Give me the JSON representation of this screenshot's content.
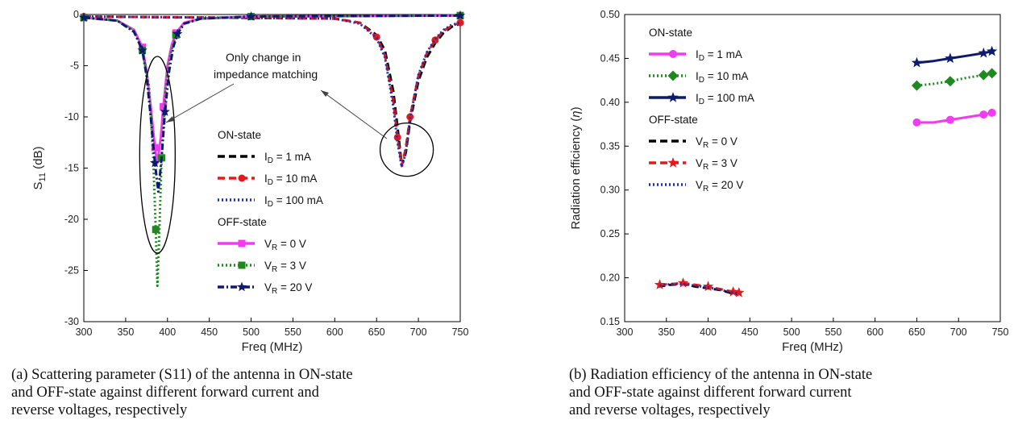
{
  "chart_data": [
    {
      "type": "line",
      "xlabel": "Freq (MHz)",
      "ylabel_main": "S",
      "ylabel_sub": "11",
      "ylabel_unit": " (dB)",
      "xlim": [
        300,
        750
      ],
      "ylim": [
        -30,
        0
      ],
      "xticks": [
        300,
        350,
        400,
        450,
        500,
        550,
        600,
        650,
        700,
        750
      ],
      "yticks": [
        0,
        -5,
        -10,
        -15,
        -20,
        -25,
        -30
      ],
      "grid": false,
      "legend_position": "center-right",
      "legend_groups": [
        {
          "title": "ON-state",
          "series": [
            0,
            1,
            2
          ]
        },
        {
          "title": "OFF-state",
          "series": [
            3,
            4,
            5
          ]
        }
      ],
      "annotations": [
        {
          "lines": [
            "Only change in",
            "impedance matching"
          ]
        }
      ],
      "series": [
        {
          "name": "ID = 1 mA",
          "label_main": "I",
          "label_sub": "D",
          "label_rest": " = 1 mA",
          "color": "#000000",
          "marker": "none",
          "style": "dash",
          "x": [
            300,
            600,
            630,
            650,
            660,
            670,
            675,
            680,
            685,
            690,
            700,
            710,
            720,
            730,
            740,
            750
          ],
          "y": [
            -0.2,
            -0.4,
            -0.8,
            -2.0,
            -3.5,
            -7.5,
            -11.0,
            -14.7,
            -13.5,
            -10.5,
            -6.5,
            -4.2,
            -2.8,
            -1.8,
            -1.2,
            -0.9
          ]
        },
        {
          "name": "ID = 10 mA",
          "label_main": "I",
          "label_sub": "D",
          "label_rest": " = 10 mA",
          "color": "#e3191c",
          "marker": "circle",
          "style": "dash",
          "x": [
            300,
            600,
            630,
            650,
            660,
            670,
            675,
            680,
            685,
            690,
            700,
            710,
            720,
            730,
            740,
            750
          ],
          "y": [
            -0.2,
            -0.4,
            -0.8,
            -2.2,
            -4.0,
            -8.5,
            -12.0,
            -14.8,
            -13.0,
            -10.0,
            -6.0,
            -3.8,
            -2.5,
            -1.6,
            -1.1,
            -0.8
          ]
        },
        {
          "name": "ID = 100 mA",
          "label_main": "I",
          "label_sub": "D",
          "label_rest": " = 100 mA",
          "color": "#1a2fb0",
          "marker": "none",
          "style": "dot",
          "x": [
            300,
            600,
            630,
            650,
            660,
            670,
            675,
            680,
            685,
            690,
            700,
            710,
            720,
            730,
            740,
            750
          ],
          "y": [
            -0.2,
            -0.4,
            -0.9,
            -2.3,
            -4.2,
            -9.0,
            -12.5,
            -14.9,
            -13.5,
            -10.2,
            -5.9,
            -3.7,
            -2.4,
            -1.5,
            -1.0,
            -0.8
          ]
        },
        {
          "name": "VR = 0 V",
          "label_main": "V",
          "label_sub": "R",
          "label_rest": " = 0 V",
          "color": "#f03cf0",
          "marker": "square",
          "style": "solid",
          "x": [
            300,
            340,
            360,
            370,
            375,
            380,
            385,
            388,
            392,
            395,
            400,
            405,
            410,
            420,
            440,
            500,
            750
          ],
          "y": [
            -0.3,
            -0.6,
            -1.5,
            -3.2,
            -5.5,
            -9.0,
            -13.0,
            -14.5,
            -12.0,
            -9.0,
            -5.0,
            -3.0,
            -1.8,
            -0.8,
            -0.4,
            -0.2,
            -0.1
          ]
        },
        {
          "name": "VR = 3 V",
          "label_main": "V",
          "label_sub": "R",
          "label_rest": " = 3 V",
          "color": "#1e8a1e",
          "marker": "square",
          "style": "dot",
          "x": [
            300,
            340,
            360,
            370,
            378,
            383,
            386,
            388,
            390,
            393,
            398,
            403,
            410,
            420,
            440,
            500,
            750
          ],
          "y": [
            -0.3,
            -0.6,
            -1.6,
            -3.5,
            -7.0,
            -14.0,
            -21.0,
            -26.5,
            -22.0,
            -14.0,
            -7.0,
            -4.0,
            -2.0,
            -0.9,
            -0.4,
            -0.2,
            -0.1
          ]
        },
        {
          "name": "VR = 20 V",
          "label_main": "V",
          "label_sub": "R",
          "label_rest": " = 20 V",
          "color": "#0d1a6e",
          "marker": "star",
          "style": "dashdot",
          "x": [
            300,
            340,
            360,
            370,
            375,
            380,
            385,
            389,
            393,
            397,
            402,
            407,
            412,
            420,
            440,
            500,
            750
          ],
          "y": [
            -0.3,
            -0.6,
            -1.7,
            -3.5,
            -6.0,
            -10.0,
            -14.5,
            -17.3,
            -14.0,
            -9.5,
            -5.5,
            -3.2,
            -1.9,
            -0.9,
            -0.4,
            -0.2,
            -0.1
          ]
        }
      ]
    },
    {
      "type": "line",
      "xlabel": "Freq (MHz)",
      "ylabel_main": "Radiation efficiency (",
      "ylabel_eta": "η",
      "ylabel_close": ")",
      "xlim": [
        300,
        750
      ],
      "ylim": [
        0.15,
        0.5
      ],
      "xticks": [
        300,
        350,
        400,
        450,
        500,
        550,
        600,
        650,
        700,
        750
      ],
      "yticks": [
        0.15,
        0.2,
        0.25,
        0.3,
        0.35,
        0.4,
        0.45,
        0.5
      ],
      "grid": false,
      "legend_position": "top-left",
      "legend_groups": [
        {
          "title": "ON-state",
          "series": [
            0,
            1,
            2
          ]
        },
        {
          "title": "OFF-state",
          "series": [
            3,
            4,
            5
          ]
        }
      ],
      "series": [
        {
          "name": "ID = 1 mA",
          "label_main": "I",
          "label_sub": "D",
          "label_rest": " = 1 mA",
          "color": "#f03cf0",
          "marker": "circle",
          "style": "solid",
          "x": [
            650,
            670,
            690,
            710,
            730,
            740
          ],
          "y": [
            0.377,
            0.377,
            0.38,
            0.383,
            0.386,
            0.388
          ]
        },
        {
          "name": "ID = 10 mA",
          "label_main": "I",
          "label_sub": "D",
          "label_rest": " = 10 mA",
          "color": "#1e8a1e",
          "marker": "diamond",
          "style": "dot",
          "x": [
            650,
            670,
            690,
            710,
            730,
            740
          ],
          "y": [
            0.419,
            0.421,
            0.424,
            0.428,
            0.431,
            0.433
          ]
        },
        {
          "name": "ID = 100 mA",
          "label_main": "I",
          "label_sub": "D",
          "label_rest": " = 100 mA",
          "color": "#0d1a6e",
          "marker": "star",
          "style": "solid",
          "x": [
            650,
            670,
            690,
            710,
            730,
            740
          ],
          "y": [
            0.445,
            0.447,
            0.45,
            0.453,
            0.456,
            0.458
          ]
        },
        {
          "name": "VR = 0 V",
          "label_main": "V",
          "label_sub": "R",
          "label_rest": " = 0 V",
          "color": "#000000",
          "marker": "none",
          "style": "dash",
          "x": [
            340,
            355,
            370,
            385,
            400,
            415,
            430,
            437
          ],
          "y": [
            0.19,
            0.192,
            0.193,
            0.19,
            0.188,
            0.186,
            0.182,
            0.181
          ]
        },
        {
          "name": "VR = 3 V",
          "label_main": "V",
          "label_sub": "R",
          "label_rest": " = 3 V",
          "color": "#e3191c",
          "marker": "star",
          "style": "dash",
          "x": [
            342,
            357,
            370,
            385,
            400,
            415,
            430,
            437
          ],
          "y": [
            0.192,
            0.193,
            0.194,
            0.192,
            0.19,
            0.187,
            0.184,
            0.183
          ]
        },
        {
          "name": "VR = 20 V",
          "label_main": "V",
          "label_sub": "R",
          "label_rest": " = 20 V",
          "color": "#1a2fb0",
          "marker": "none",
          "style": "dot",
          "x": [
            342,
            357,
            370,
            385,
            400,
            415,
            430,
            437
          ],
          "y": [
            0.191,
            0.193,
            0.193,
            0.191,
            0.189,
            0.186,
            0.183,
            0.182
          ]
        }
      ]
    }
  ],
  "captions": {
    "a": "(a) Scattering parameter (S11) of the antenna in ON-state\n      and OFF-state against different forward current and\n      reverse voltages, respectively",
    "b": "(b) Radiation efficiency of the antenna in ON-state\n      and OFF-state against different forward current\n      and reverse voltages, respectively"
  }
}
